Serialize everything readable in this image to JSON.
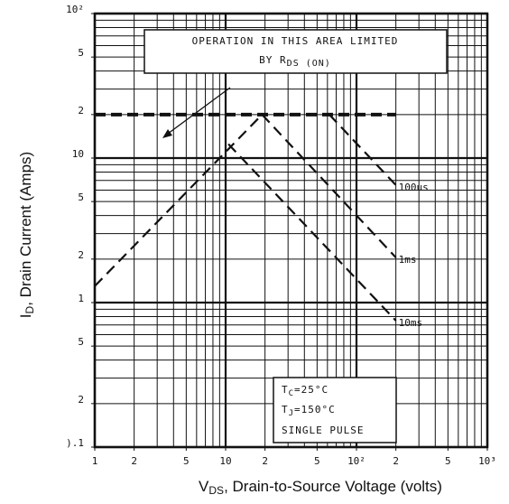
{
  "chart_data": {
    "type": "line",
    "log_x": true,
    "log_y": true,
    "grid": true,
    "xlabel": {
      "main": "V",
      "sub": "DS",
      "rest": ", Drain-to-Source Voltage (volts)"
    },
    "ylabel": {
      "main": "I",
      "sub": "D",
      "rest": ", Drain Current (Amps)"
    },
    "xlim": [
      1,
      1000
    ],
    "ylim": [
      0.1,
      100
    ],
    "xticks": [
      1,
      2,
      5,
      10,
      {
        "value": 20,
        "label": "2"
      },
      {
        "value": 50,
        "label": "5"
      },
      {
        "value": 100,
        "label": "10²"
      },
      {
        "value": 200,
        "label": "2"
      },
      {
        "value": 500,
        "label": "5"
      },
      {
        "value": 1000,
        "label": "10³"
      }
    ],
    "yticks": [
      {
        "value": 0.1,
        "label": ").1"
      },
      {
        "value": 0.2,
        "label": "2"
      },
      {
        "value": 0.5,
        "label": "5"
      },
      1,
      2,
      5,
      10,
      {
        "value": 20,
        "label": "2"
      },
      {
        "value": 50,
        "label": "5"
      },
      {
        "value": 100,
        "label": "10²"
      }
    ],
    "xgrid": [
      1,
      2,
      3,
      4,
      5,
      6,
      7,
      8,
      9,
      10,
      20,
      30,
      40,
      50,
      60,
      70,
      80,
      90,
      100,
      200,
      300,
      400,
      500,
      600,
      700,
      800,
      900,
      1000
    ],
    "ygrid": [
      0.1,
      0.2,
      0.3,
      0.4,
      0.5,
      0.6,
      0.7,
      0.8,
      0.9,
      1,
      2,
      3,
      4,
      5,
      6,
      7,
      8,
      9,
      10,
      20,
      30,
      40,
      50,
      60,
      70,
      80,
      90,
      100
    ],
    "series": [
      {
        "color": "#111",
        "x": [
          1,
          19
        ],
        "values": [
          1.3,
          20
        ]
      },
      {
        "color": "#111",
        "x": [
          1,
          200
        ],
        "values": [
          20,
          20
        ],
        "thick": true
      },
      {
        "name": "100us",
        "color": "#111",
        "x": [
          62,
          200
        ],
        "values": [
          20,
          6.5
        ]
      },
      {
        "name": "1ms",
        "color": "#111",
        "x": [
          19,
          200
        ],
        "values": [
          20,
          2.05
        ]
      },
      {
        "name": "10ms",
        "color": "#111",
        "x": [
          10.5,
          200
        ],
        "values": [
          12.5,
          0.75
        ]
      }
    ],
    "annotations": {
      "area": {
        "line1": "OPERATION IN THIS AREA LIMITED",
        "by": "BY R",
        "sub": "DS (ON)"
      },
      "tc": {
        "main": "T",
        "sub": "C",
        "rest": "=25°C"
      },
      "tj": {
        "main": "T",
        "sub": "J",
        "rest": "=150°C"
      },
      "pulse": "SINGLE PULSE"
    }
  }
}
